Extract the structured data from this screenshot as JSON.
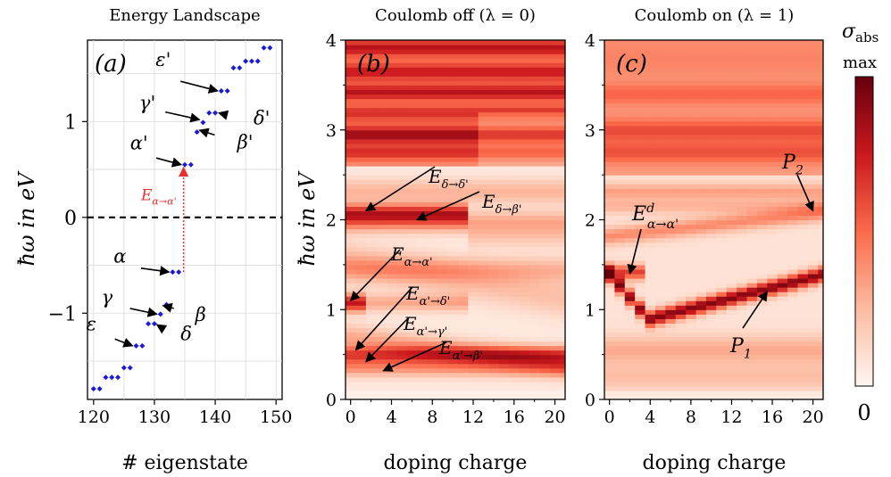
{
  "chart_data": [
    {
      "type": "scatter",
      "panel_label": "(a)",
      "title": "Energy Landscape",
      "xlabel": "# eigenstate",
      "ylabel": "ħω in eV",
      "xlim": [
        119,
        151
      ],
      "ylim": [
        -1.9,
        1.85
      ],
      "xticks": [
        "120",
        "130",
        "140",
        "150"
      ],
      "yticks": [
        "−1",
        "0",
        "1"
      ],
      "grid": true,
      "point_color": "#1a1ad8",
      "points": [
        [
          120,
          -1.79
        ],
        [
          121,
          -1.79
        ],
        [
          122,
          -1.67
        ],
        [
          123,
          -1.67
        ],
        [
          124,
          -1.67
        ],
        [
          125,
          -1.57
        ],
        [
          126,
          -1.57
        ],
        [
          127,
          -1.34
        ],
        [
          128,
          -1.34
        ],
        [
          129,
          -1.11
        ],
        [
          130,
          -1.11
        ],
        [
          131,
          -1.01
        ],
        [
          132,
          -0.91
        ],
        [
          133,
          -0.57
        ],
        [
          134,
          -0.57
        ],
        [
          135,
          0.55
        ],
        [
          136,
          0.55
        ],
        [
          137,
          0.89
        ],
        [
          138,
          0.99
        ],
        [
          139,
          1.09
        ],
        [
          140,
          1.09
        ],
        [
          141,
          1.32
        ],
        [
          142,
          1.32
        ],
        [
          143,
          1.56
        ],
        [
          144,
          1.56
        ],
        [
          145,
          1.63
        ],
        [
          146,
          1.63
        ],
        [
          147,
          1.63
        ],
        [
          148,
          1.77
        ],
        [
          149,
          1.77
        ]
      ],
      "fermi_line_y": 0,
      "transition_arrow": {
        "x": 134.8,
        "from": -0.57,
        "to": 0.52,
        "label": "E_{α→α'}",
        "color": "#e8302c"
      },
      "annotations": [
        {
          "text": "ε'",
          "tip": [
            141,
            1.32
          ]
        },
        {
          "text": "γ'",
          "tip": [
            138,
            1.02
          ]
        },
        {
          "text": "δ'",
          "tip": [
            140,
            1.09
          ]
        },
        {
          "text": "β'",
          "tip": [
            138,
            0.91
          ]
        },
        {
          "text": "α'",
          "tip": [
            135,
            0.55
          ]
        },
        {
          "text": "α",
          "tip": [
            133,
            -0.57
          ]
        },
        {
          "text": "γ",
          "tip": [
            131,
            -1.01
          ]
        },
        {
          "text": "β",
          "tip": [
            132,
            -0.92
          ]
        },
        {
          "text": "δ",
          "tip": [
            131,
            -1.12
          ]
        },
        {
          "text": "ε",
          "tip": [
            127,
            -1.34
          ]
        }
      ]
    },
    {
      "type": "heatmap",
      "panel_label": "(b)",
      "title": "Coulomb off (λ = 0)",
      "xlabel": "doping charge",
      "ylabel": "ħω in eV",
      "xlim": [
        -0.5,
        21
      ],
      "ylim": [
        0,
        4
      ],
      "xticks": [
        "0",
        "4",
        "8",
        "12",
        "16",
        "20"
      ],
      "yticks": [
        "0",
        "1",
        "2",
        "3",
        "4"
      ],
      "colormap": "Reds",
      "annotations": [
        {
          "text": "E_{δ→δ'}",
          "tip": [
            1.5,
            2.1
          ]
        },
        {
          "text": "E_{δ→β'}",
          "tip": [
            6.5,
            2.0
          ]
        },
        {
          "text": "E_{α→α'}",
          "tip": [
            0,
            1.1
          ]
        },
        {
          "text": "E_{α'→δ'}",
          "tip": [
            0.5,
            0.55
          ]
        },
        {
          "text": "E_{α'→γ'}",
          "tip": [
            1.5,
            0.42
          ]
        },
        {
          "text": "E_{α'→β'}",
          "tip": [
            3.2,
            0.32
          ]
        }
      ]
    },
    {
      "type": "heatmap",
      "panel_label": "(c)",
      "title": "Coulomb on (λ = 1)",
      "xlabel": "doping charge",
      "yticks": [
        "0",
        "1",
        "2",
        "3",
        "4"
      ],
      "xticks": [
        "0",
        "4",
        "8",
        "12",
        "16",
        "20"
      ],
      "xlim": [
        -0.5,
        21
      ],
      "ylim": [
        0,
        4
      ],
      "colormap": "Reds",
      "annotations": [
        {
          "text": "E^d_{α→α'}",
          "tip": [
            2.0,
            1.4
          ]
        },
        {
          "text": "P_2",
          "tip": [
            20,
            2.1
          ]
        },
        {
          "text": "P_1",
          "tip": [
            15.5,
            1.2
          ]
        }
      ]
    }
  ],
  "colorbar": {
    "label": "σ_abs",
    "max_label": "max",
    "min_label": "0",
    "colors": [
      "#fff5f0",
      "#fcbba1",
      "#fb6a4a",
      "#cb181d",
      "#67000d"
    ]
  }
}
